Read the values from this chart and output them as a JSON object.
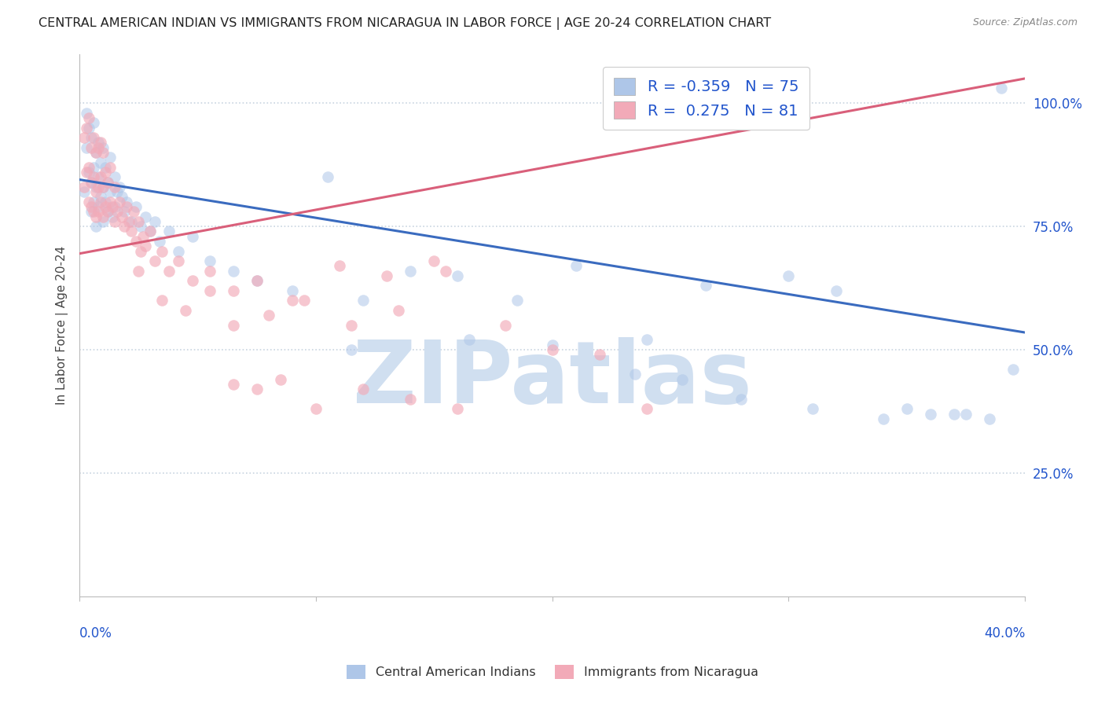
{
  "title": "CENTRAL AMERICAN INDIAN VS IMMIGRANTS FROM NICARAGUA IN LABOR FORCE | AGE 20-24 CORRELATION CHART",
  "source": "Source: ZipAtlas.com",
  "ylabel": "In Labor Force | Age 20-24",
  "xlim": [
    0.0,
    0.4
  ],
  "ylim": [
    0.0,
    1.1
  ],
  "R_blue": "-0.359",
  "N_blue": "75",
  "R_pink": "0.275",
  "N_pink": "81",
  "watermark": "ZIPatlas",
  "blue_dot_color": "#aec6e8",
  "pink_dot_color": "#f2aab8",
  "blue_line_color": "#3a6bbf",
  "pink_line_color": "#d95f7a",
  "blue_line_x0": 0.0,
  "blue_line_y0": 0.845,
  "blue_line_x1": 0.4,
  "blue_line_y1": 0.535,
  "pink_line_x0": 0.0,
  "pink_line_y0": 0.695,
  "pink_line_x1": 0.4,
  "pink_line_y1": 1.05,
  "background_color": "#ffffff",
  "dot_size": 110,
  "grid_color": "#c8d4e0",
  "title_color": "#222222",
  "axis_label_color": "#2255cc",
  "watermark_color": "#d0dff0",
  "watermark_fontsize": 80,
  "blue_scatter_x": [
    0.002,
    0.003,
    0.003,
    0.004,
    0.004,
    0.005,
    0.005,
    0.005,
    0.006,
    0.006,
    0.006,
    0.007,
    0.007,
    0.007,
    0.008,
    0.008,
    0.008,
    0.009,
    0.009,
    0.01,
    0.01,
    0.01,
    0.011,
    0.011,
    0.012,
    0.012,
    0.013,
    0.013,
    0.014,
    0.015,
    0.015,
    0.016,
    0.017,
    0.018,
    0.019,
    0.02,
    0.022,
    0.024,
    0.026,
    0.028,
    0.03,
    0.032,
    0.034,
    0.038,
    0.042,
    0.048,
    0.055,
    0.065,
    0.075,
    0.09,
    0.105,
    0.12,
    0.14,
    0.16,
    0.185,
    0.21,
    0.24,
    0.265,
    0.3,
    0.32,
    0.35,
    0.36,
    0.375,
    0.385,
    0.395,
    0.115,
    0.165,
    0.2,
    0.235,
    0.255,
    0.28,
    0.31,
    0.34,
    0.37,
    0.39
  ],
  "blue_scatter_y": [
    0.82,
    0.91,
    0.98,
    0.86,
    0.95,
    0.78,
    0.84,
    0.93,
    0.8,
    0.87,
    0.96,
    0.75,
    0.83,
    0.9,
    0.79,
    0.85,
    0.92,
    0.81,
    0.88,
    0.76,
    0.83,
    0.91,
    0.8,
    0.87,
    0.78,
    0.84,
    0.82,
    0.89,
    0.77,
    0.85,
    0.79,
    0.82,
    0.83,
    0.81,
    0.78,
    0.8,
    0.76,
    0.79,
    0.75,
    0.77,
    0.74,
    0.76,
    0.72,
    0.74,
    0.7,
    0.73,
    0.68,
    0.66,
    0.64,
    0.62,
    0.85,
    0.6,
    0.66,
    0.65,
    0.6,
    0.67,
    0.52,
    0.63,
    0.65,
    0.62,
    0.38,
    0.37,
    0.37,
    0.36,
    0.46,
    0.5,
    0.52,
    0.51,
    0.45,
    0.44,
    0.4,
    0.38,
    0.36,
    0.37,
    1.03
  ],
  "pink_scatter_x": [
    0.002,
    0.002,
    0.003,
    0.003,
    0.004,
    0.004,
    0.004,
    0.005,
    0.005,
    0.005,
    0.006,
    0.006,
    0.006,
    0.007,
    0.007,
    0.007,
    0.008,
    0.008,
    0.008,
    0.009,
    0.009,
    0.009,
    0.01,
    0.01,
    0.01,
    0.011,
    0.011,
    0.012,
    0.012,
    0.013,
    0.013,
    0.014,
    0.015,
    0.015,
    0.016,
    0.017,
    0.018,
    0.019,
    0.02,
    0.021,
    0.022,
    0.023,
    0.024,
    0.025,
    0.026,
    0.027,
    0.028,
    0.03,
    0.032,
    0.035,
    0.038,
    0.042,
    0.048,
    0.055,
    0.065,
    0.075,
    0.09,
    0.11,
    0.13,
    0.15,
    0.025,
    0.035,
    0.045,
    0.055,
    0.065,
    0.08,
    0.095,
    0.115,
    0.135,
    0.155,
    0.065,
    0.075,
    0.085,
    0.1,
    0.12,
    0.14,
    0.16,
    0.18,
    0.2,
    0.22,
    0.24
  ],
  "pink_scatter_y": [
    0.83,
    0.93,
    0.86,
    0.95,
    0.8,
    0.87,
    0.97,
    0.79,
    0.84,
    0.91,
    0.78,
    0.85,
    0.93,
    0.77,
    0.82,
    0.9,
    0.78,
    0.83,
    0.91,
    0.8,
    0.85,
    0.92,
    0.77,
    0.83,
    0.9,
    0.79,
    0.86,
    0.78,
    0.84,
    0.8,
    0.87,
    0.79,
    0.76,
    0.83,
    0.78,
    0.8,
    0.77,
    0.75,
    0.79,
    0.76,
    0.74,
    0.78,
    0.72,
    0.76,
    0.7,
    0.73,
    0.71,
    0.74,
    0.68,
    0.7,
    0.66,
    0.68,
    0.64,
    0.66,
    0.62,
    0.64,
    0.6,
    0.67,
    0.65,
    0.68,
    0.66,
    0.6,
    0.58,
    0.62,
    0.55,
    0.57,
    0.6,
    0.55,
    0.58,
    0.66,
    0.43,
    0.42,
    0.44,
    0.38,
    0.42,
    0.4,
    0.38,
    0.55,
    0.5,
    0.49,
    0.38
  ]
}
